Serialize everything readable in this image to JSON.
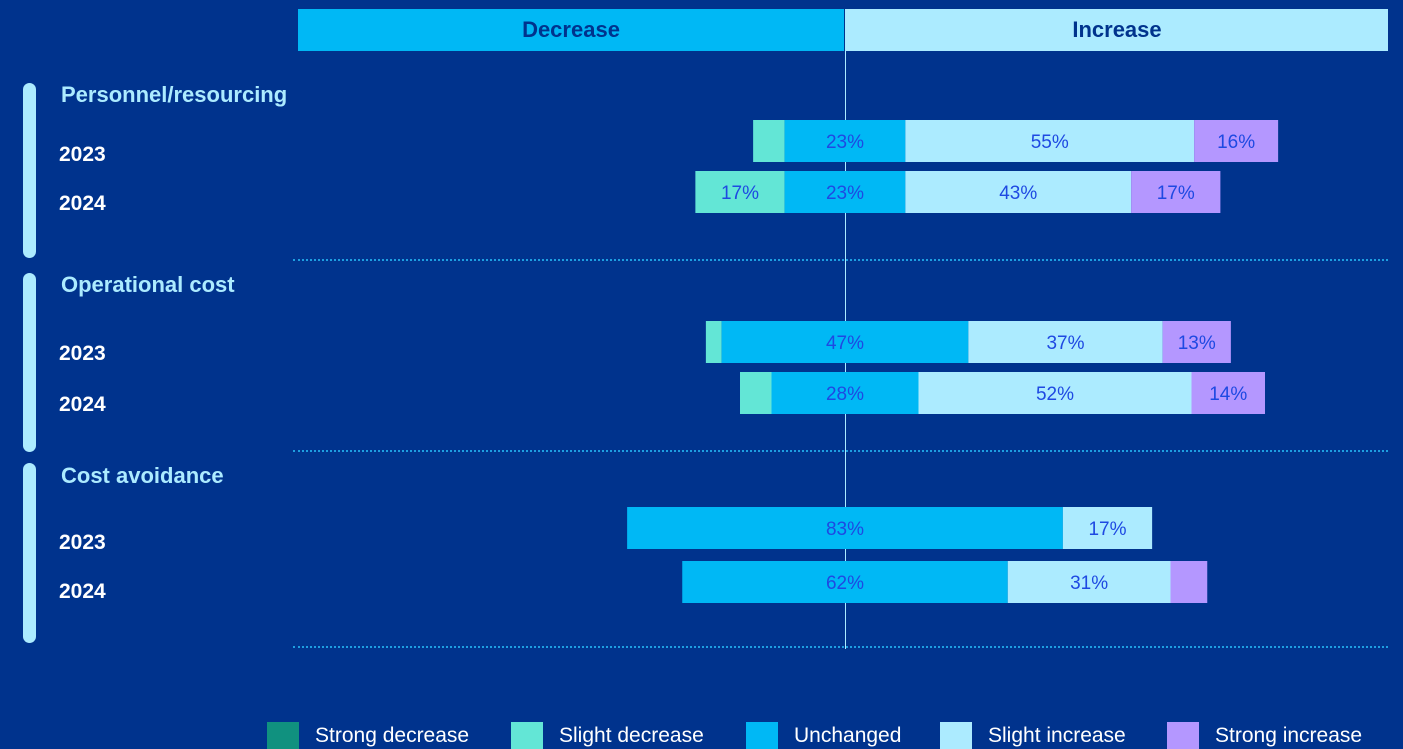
{
  "header": {
    "decrease_label": "Decrease",
    "increase_label": "Increase"
  },
  "colors": {
    "background": "#00338d",
    "strong_decrease": "#10917f",
    "slight_decrease": "#63e6d6",
    "unchanged": "#00b8f5",
    "slight_increase": "#acebff",
    "strong_increase": "#b497ff",
    "label_text": "#1e49e2"
  },
  "groups": [
    {
      "title": "Personnel/resourcing",
      "years": [
        "2023",
        "2024"
      ]
    },
    {
      "title": "Operational cost",
      "years": [
        "2023",
        "2024"
      ]
    },
    {
      "title": "Cost avoidance",
      "years": [
        "2023",
        "2024"
      ]
    }
  ],
  "legend": [
    {
      "label": "Strong decrease",
      "color": "#10917f"
    },
    {
      "label": "Slight decrease",
      "color": "#63e6d6"
    },
    {
      "label": "Unchanged",
      "color": "#00b8f5"
    },
    {
      "label": "Slight increase",
      "color": "#acebff"
    },
    {
      "label": "Strong increase",
      "color": "#b497ff"
    }
  ],
  "chart_data": {
    "type": "bar",
    "layout": "diverging-stacked-horizontal",
    "categories": [
      "Personnel/resourcing 2023",
      "Personnel/resourcing 2024",
      "Operational cost 2023",
      "Operational cost 2024",
      "Cost avoidance 2023",
      "Cost avoidance 2024"
    ],
    "series": [
      {
        "name": "Strong decrease",
        "values": [
          0,
          0,
          0,
          0,
          0,
          0
        ]
      },
      {
        "name": "Slight decrease",
        "values": [
          6,
          17,
          3,
          6,
          0,
          0
        ],
        "labels": [
          "",
          "17%",
          "",
          "",
          "",
          ""
        ]
      },
      {
        "name": "Unchanged",
        "values": [
          23,
          23,
          47,
          28,
          83,
          62
        ],
        "labels": [
          "23%",
          "23%",
          "47%",
          "28%",
          "83%",
          "62%"
        ]
      },
      {
        "name": "Slight increase",
        "values": [
          55,
          43,
          37,
          52,
          17,
          31
        ],
        "labels": [
          "55%",
          "43%",
          "37%",
          "52%",
          "17%",
          "31%"
        ]
      },
      {
        "name": "Strong increase",
        "values": [
          16,
          17,
          13,
          14,
          0,
          7
        ],
        "labels": [
          "16%",
          "17%",
          "13%",
          "14%",
          "",
          ""
        ]
      }
    ],
    "legend_position": "bottom-right"
  }
}
